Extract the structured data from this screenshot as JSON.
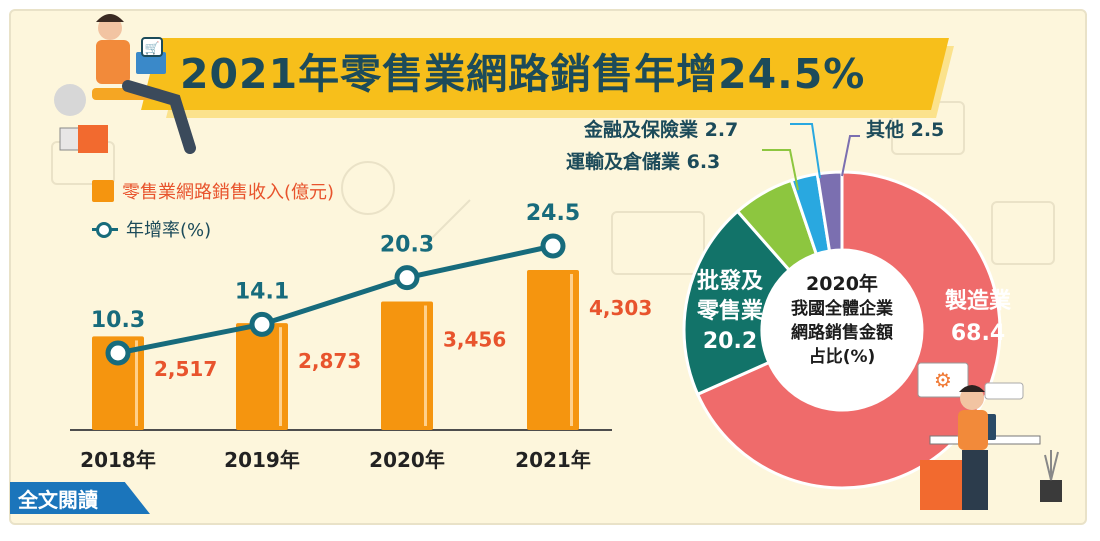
{
  "title": "2021年零售業網路銷售年增24.5%",
  "read_full_label": "全文閱讀",
  "legend": {
    "bars_label": "零售業網路銷售收入(億元)",
    "line_label": "年增率(%)"
  },
  "colors": {
    "bar": "#f5950f",
    "line": "#176b7c",
    "bar_label": "#e8542d",
    "title": "#1c4b5a",
    "title_banner": "#f7bf1b",
    "read_tag": "#1b75bb"
  },
  "chart_data": [
    {
      "type": "bar",
      "categories": [
        "2018年",
        "2019年",
        "2020年",
        "2021年"
      ],
      "series": [
        {
          "name": "零售業網路銷售收入(億元)",
          "values": [
            2517,
            2873,
            3456,
            4303
          ],
          "value_labels": [
            "2,517",
            "2,873",
            "3,456",
            "4,303"
          ]
        },
        {
          "name": "年增率(%)",
          "type": "line",
          "values": [
            10.3,
            14.1,
            20.3,
            24.5
          ],
          "value_labels": [
            "10.3",
            "14.1",
            "20.3",
            "24.5"
          ]
        }
      ],
      "legend_position": "top-left"
    },
    {
      "type": "pie",
      "style": "donut",
      "center_label": [
        "2020年",
        "我國全體企業",
        "網路銷售金額",
        "占比(%)"
      ],
      "slices": [
        {
          "label": "製造業",
          "value": 68.4,
          "value_text": "68.4",
          "color": "#ef6b6b"
        },
        {
          "label": "批發及零售業",
          "label_lines": [
            "批發及",
            "零售業"
          ],
          "value": 20.2,
          "value_text": "20.2",
          "color": "#127369"
        },
        {
          "label": "運輸及倉儲業",
          "value": 6.3,
          "value_text": "6.3",
          "color": "#8dc63f"
        },
        {
          "label": "金融及保險業",
          "value": 2.7,
          "value_text": "2.7",
          "color": "#29a8e0"
        },
        {
          "label": "其他",
          "value": 2.5,
          "value_text": "2.5",
          "color": "#7b6fb0"
        }
      ]
    }
  ]
}
